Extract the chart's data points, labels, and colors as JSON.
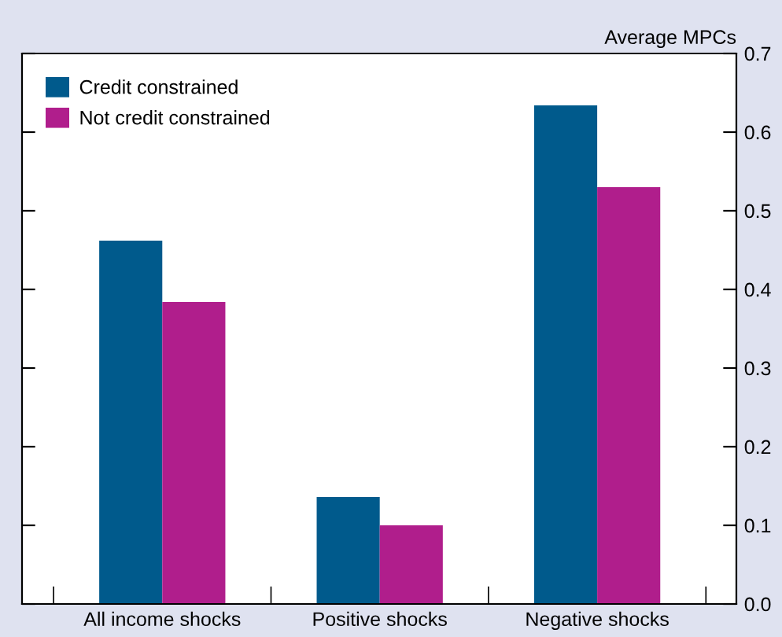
{
  "chart_data": {
    "type": "bar",
    "ylabel": "Average MPCs",
    "categories": [
      "All income shocks",
      "Positive shocks",
      "Negative shocks"
    ],
    "series": [
      {
        "name": "Credit constrained",
        "color": "#005a8c",
        "values": [
          0.462,
          0.136,
          0.634
        ]
      },
      {
        "name": "Not credit constrained",
        "color": "#b01e8c",
        "values": [
          0.384,
          0.1,
          0.53
        ]
      }
    ],
    "ylim": [
      0,
      0.7
    ],
    "yticks": [
      {
        "value": 0,
        "label": "0.0"
      },
      0.1,
      0.2,
      0.3,
      0.4,
      0.5,
      0.6,
      0.7
    ],
    "grid": false,
    "legend": "top left"
  }
}
